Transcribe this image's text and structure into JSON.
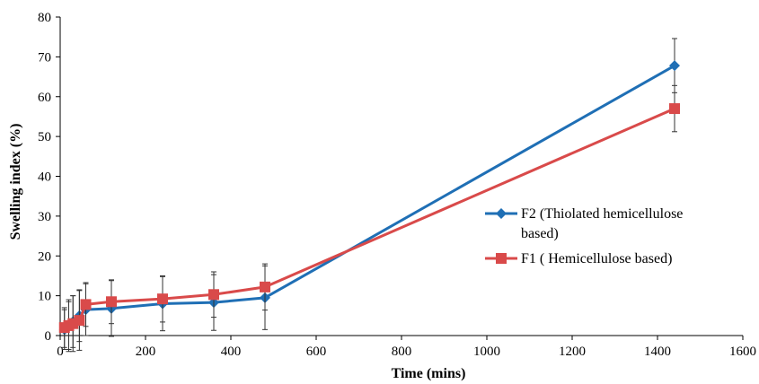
{
  "chart_data": {
    "type": "line",
    "xlabel": "Time (mins)",
    "ylabel": "Swelling index (%)",
    "xlim": [
      0,
      1600
    ],
    "ylim": [
      0,
      80
    ],
    "x_ticks": [
      0,
      200,
      400,
      600,
      800,
      1000,
      1200,
      1400,
      1600
    ],
    "y_ticks": [
      0,
      10,
      20,
      30,
      40,
      50,
      60,
      70,
      80
    ],
    "grid": false,
    "legend_position": "right",
    "series": [
      {
        "name": "F2 (Thiolated hemicellulose based)",
        "legend_lines": [
          "F2 (Thiolated hemicellulose",
          "based)"
        ],
        "color": "#1f6fb5",
        "marker": "diamond",
        "x": [
          10,
          20,
          30,
          45,
          60,
          120,
          240,
          360,
          480,
          1440
        ],
        "y": [
          1.5,
          2.5,
          3.5,
          5.0,
          6.5,
          6.8,
          8.0,
          8.3,
          9.5,
          67.8
        ],
        "error": [
          5.0,
          6.0,
          6.5,
          6.5,
          6.5,
          7.0,
          6.8,
          7.0,
          8.0,
          6.8
        ]
      },
      {
        "name": "F1 ( Hemicellulose based)",
        "legend_lines": [
          "F1 ( Hemicellulose based)"
        ],
        "color": "#d94a4a",
        "marker": "square",
        "x": [
          10,
          20,
          30,
          45,
          60,
          120,
          240,
          360,
          480,
          1440
        ],
        "y": [
          2.0,
          2.5,
          3.0,
          3.8,
          7.8,
          8.5,
          9.2,
          10.3,
          12.2,
          57.0
        ],
        "error": [
          5.0,
          6.5,
          7.0,
          7.5,
          5.5,
          5.5,
          5.8,
          5.7,
          5.8,
          5.8
        ]
      }
    ]
  }
}
